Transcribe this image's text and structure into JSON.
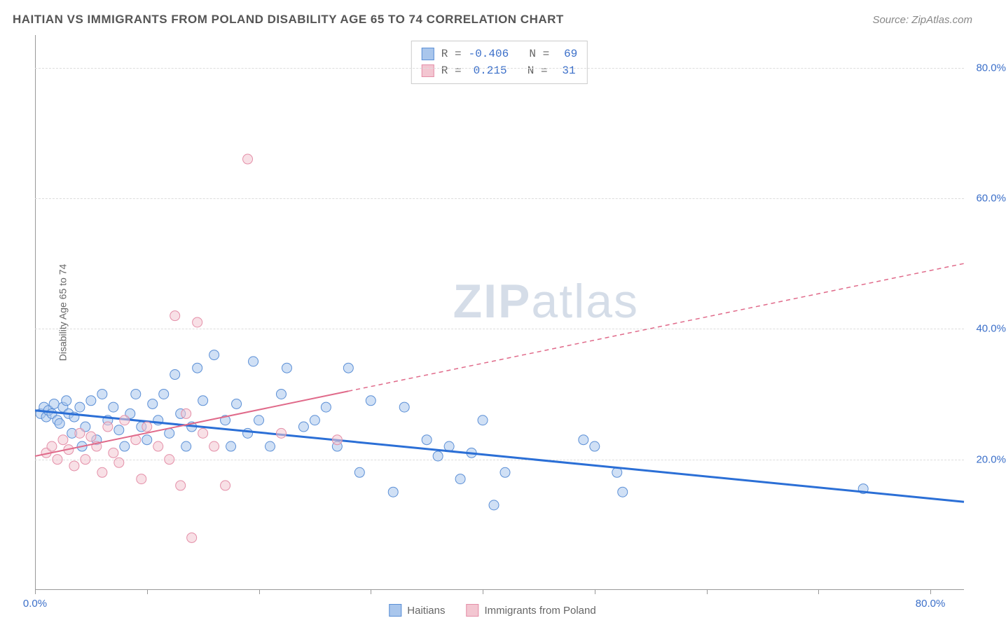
{
  "header": {
    "title": "HAITIAN VS IMMIGRANTS FROM POLAND DISABILITY AGE 65 TO 74 CORRELATION CHART",
    "source": "Source: ZipAtlas.com"
  },
  "chart": {
    "type": "scatter",
    "y_axis_label": "Disability Age 65 to 74",
    "xlim": [
      0,
      83
    ],
    "ylim": [
      0,
      85
    ],
    "x_ticks": [
      0,
      10,
      20,
      30,
      40,
      50,
      60,
      70,
      80
    ],
    "x_tick_labels_shown": {
      "0": "0.0%",
      "80": "80.0%"
    },
    "y_gridlines": [
      20,
      40,
      60,
      80
    ],
    "y_tick_labels": {
      "20": "20.0%",
      "40": "40.0%",
      "60": "60.0%",
      "80": "80.0%"
    },
    "background_color": "#ffffff",
    "grid_color": "#dddddd",
    "axis_color": "#999999",
    "tick_label_color": "#3b6fc9",
    "marker_radius": 7,
    "marker_opacity": 0.55,
    "series": [
      {
        "name": "Haitians",
        "color_fill": "#a9c6ec",
        "color_stroke": "#5b8fd6",
        "R": "-0.406",
        "N": "69",
        "trend": {
          "x1": 0,
          "y1": 27.5,
          "x2": 83,
          "y2": 13.5,
          "solid_until_x": 83,
          "color": "#2b6fd6",
          "width": 3
        },
        "points": [
          [
            0.5,
            27
          ],
          [
            0.8,
            28
          ],
          [
            1,
            26.5
          ],
          [
            1.2,
            27.5
          ],
          [
            1.5,
            27
          ],
          [
            1.7,
            28.5
          ],
          [
            2,
            26
          ],
          [
            2.2,
            25.5
          ],
          [
            2.5,
            28
          ],
          [
            2.8,
            29
          ],
          [
            3,
            27
          ],
          [
            3.3,
            24
          ],
          [
            3.5,
            26.5
          ],
          [
            4,
            28
          ],
          [
            4.2,
            22
          ],
          [
            4.5,
            25
          ],
          [
            5,
            29
          ],
          [
            5.5,
            23
          ],
          [
            6,
            30
          ],
          [
            6.5,
            26
          ],
          [
            7,
            28
          ],
          [
            7.5,
            24.5
          ],
          [
            8,
            22
          ],
          [
            8.5,
            27
          ],
          [
            9,
            30
          ],
          [
            9.5,
            25
          ],
          [
            10,
            23
          ],
          [
            10.5,
            28.5
          ],
          [
            11,
            26
          ],
          [
            11.5,
            30
          ],
          [
            12,
            24
          ],
          [
            12.5,
            33
          ],
          [
            13,
            27
          ],
          [
            13.5,
            22
          ],
          [
            14,
            25
          ],
          [
            14.5,
            34
          ],
          [
            15,
            29
          ],
          [
            16,
            36
          ],
          [
            17,
            26
          ],
          [
            17.5,
            22
          ],
          [
            18,
            28.5
          ],
          [
            19,
            24
          ],
          [
            19.5,
            35
          ],
          [
            20,
            26
          ],
          [
            21,
            22
          ],
          [
            22,
            30
          ],
          [
            22.5,
            34
          ],
          [
            24,
            25
          ],
          [
            25,
            26
          ],
          [
            26,
            28
          ],
          [
            27,
            22
          ],
          [
            28,
            34
          ],
          [
            29,
            18
          ],
          [
            30,
            29
          ],
          [
            32,
            15
          ],
          [
            33,
            28
          ],
          [
            35,
            23
          ],
          [
            36,
            20.5
          ],
          [
            37,
            22
          ],
          [
            38,
            17
          ],
          [
            39,
            21
          ],
          [
            40,
            26
          ],
          [
            41,
            13
          ],
          [
            42,
            18
          ],
          [
            49,
            23
          ],
          [
            50,
            22
          ],
          [
            52,
            18
          ],
          [
            52.5,
            15
          ],
          [
            74,
            15.5
          ]
        ]
      },
      {
        "name": "Immigrants from Poland",
        "color_fill": "#f3c6d1",
        "color_stroke": "#e48fa8",
        "R": "0.215",
        "N": "31",
        "trend": {
          "x1": 0,
          "y1": 20.5,
          "x2": 83,
          "y2": 50,
          "solid_until_x": 28,
          "color": "#e06a8a",
          "width": 2
        },
        "points": [
          [
            1,
            21
          ],
          [
            1.5,
            22
          ],
          [
            2,
            20
          ],
          [
            2.5,
            23
          ],
          [
            3,
            21.5
          ],
          [
            3.5,
            19
          ],
          [
            4,
            24
          ],
          [
            4.5,
            20
          ],
          [
            5,
            23.5
          ],
          [
            5.5,
            22
          ],
          [
            6,
            18
          ],
          [
            6.5,
            25
          ],
          [
            7,
            21
          ],
          [
            7.5,
            19.5
          ],
          [
            8,
            26
          ],
          [
            9,
            23
          ],
          [
            9.5,
            17
          ],
          [
            10,
            25
          ],
          [
            11,
            22
          ],
          [
            12,
            20
          ],
          [
            12.5,
            42
          ],
          [
            13,
            16
          ],
          [
            13.5,
            27
          ],
          [
            14,
            8
          ],
          [
            14.5,
            41
          ],
          [
            15,
            24
          ],
          [
            16,
            22
          ],
          [
            17,
            16
          ],
          [
            19,
            66
          ],
          [
            22,
            24
          ],
          [
            27,
            23
          ]
        ]
      }
    ],
    "stats_box": {
      "rows": [
        {
          "swatch_fill": "#a9c6ec",
          "swatch_stroke": "#5b8fd6",
          "R": "-0.406",
          "N": "69"
        },
        {
          "swatch_fill": "#f3c6d1",
          "swatch_stroke": "#e48fa8",
          "R": "0.215",
          "N": "31"
        }
      ]
    },
    "bottom_legend": [
      {
        "swatch_fill": "#a9c6ec",
        "swatch_stroke": "#5b8fd6",
        "label": "Haitians"
      },
      {
        "swatch_fill": "#f3c6d1",
        "swatch_stroke": "#e48fa8",
        "label": "Immigrants from Poland"
      }
    ],
    "watermark": {
      "text_bold": "ZIP",
      "text_rest": "atlas"
    }
  }
}
